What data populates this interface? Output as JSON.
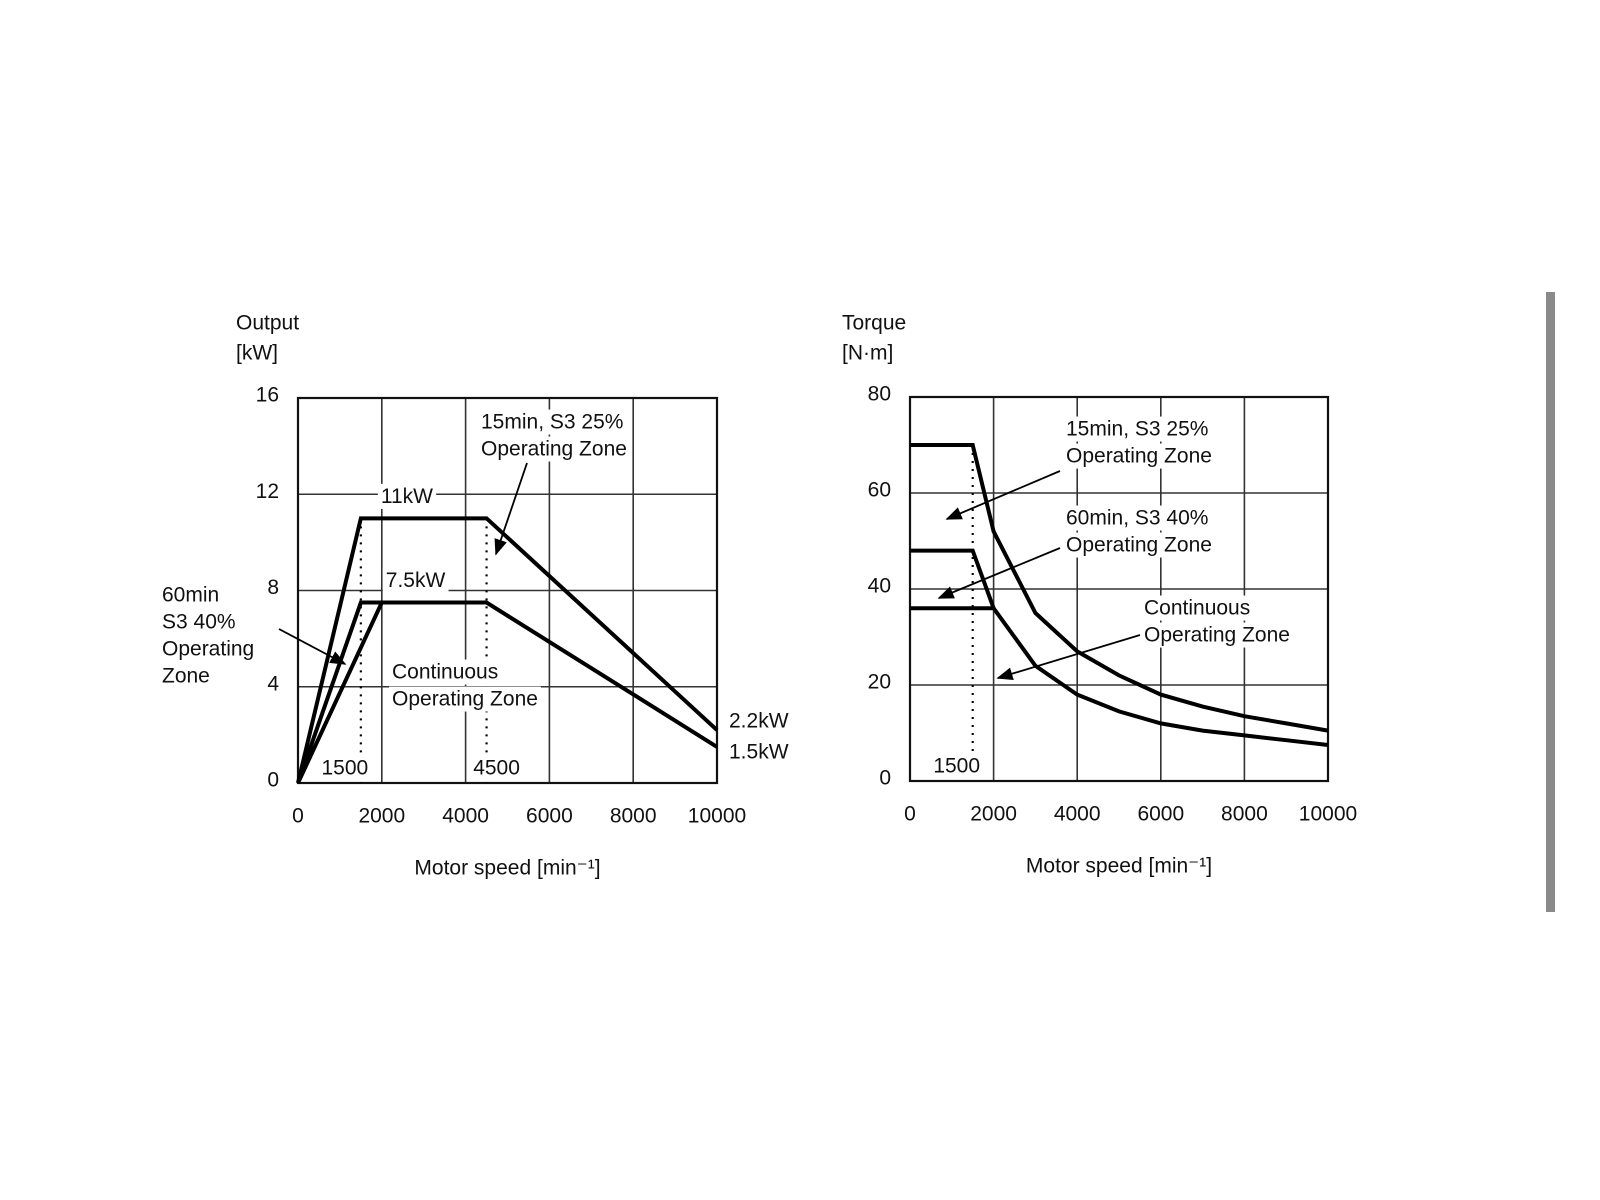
{
  "chart_data": [
    {
      "type": "line",
      "y_label": [
        "Output",
        "[kW]"
      ],
      "x_label": "Motor speed [min⁻¹]",
      "xlim": [
        0,
        10000
      ],
      "xticks": [
        0,
        2000,
        4000,
        6000,
        8000,
        10000
      ],
      "ylim": [
        0,
        16
      ],
      "yticks": [
        0,
        4,
        8,
        12,
        16
      ],
      "grid": true,
      "series": [
        {
          "color": "#000000",
          "x": [
            0,
            1500,
            4500,
            10000
          ],
          "values": [
            0,
            11,
            11,
            2.2
          ],
          "value_labels": [
            null,
            "11kW",
            null,
            "2.2kW"
          ]
        },
        {
          "color": "#000000",
          "x": [
            0,
            1500,
            2000
          ],
          "values": [
            0,
            7.5,
            7.5
          ]
        },
        {
          "color": "#000000",
          "x": [
            0,
            2000,
            4500,
            10000
          ],
          "values": [
            0,
            7.5,
            7.5,
            1.5
          ],
          "value_labels": [
            null,
            "7.5kW",
            null,
            "1.5kW"
          ]
        }
      ],
      "vlines": [
        1500,
        4500
      ],
      "annotations": [
        {
          "text": [
            "15min, S3 25%",
            "Operating Zone"
          ]
        },
        {
          "text": [
            "60min",
            "S3 40%",
            "Operating",
            "Zone"
          ]
        },
        {
          "text": [
            "Continuous",
            "Operating Zone"
          ]
        }
      ]
    },
    {
      "type": "line",
      "y_label": [
        "Torque",
        "[N·m]"
      ],
      "x_label": "Motor speed [min⁻¹]",
      "xlim": [
        0,
        10000
      ],
      "xticks": [
        0,
        2000,
        4000,
        6000,
        8000,
        10000
      ],
      "ylim": [
        0,
        80
      ],
      "yticks": [
        0,
        20,
        40,
        60,
        80
      ],
      "grid": true,
      "series": [
        {
          "color": "#000000",
          "x": [
            0,
            1500,
            2000,
            3000,
            4000,
            5000,
            6000,
            7000,
            8000,
            9000,
            10000
          ],
          "values": [
            70,
            70,
            52,
            35,
            27,
            22,
            18,
            15.5,
            13.5,
            12,
            10.5
          ]
        },
        {
          "color": "#000000",
          "x": [
            0,
            1500,
            2000
          ],
          "values": [
            48,
            48,
            36
          ]
        },
        {
          "color": "#000000",
          "x": [
            0,
            2000,
            3000,
            4000,
            5000,
            6000,
            7000,
            8000,
            9000,
            10000
          ],
          "values": [
            36,
            36,
            24,
            18,
            14.5,
            12,
            10.5,
            9.5,
            8.5,
            7.5
          ]
        }
      ],
      "vlines": [
        1500
      ],
      "annotations": [
        {
          "text": [
            "15min, S3 25%",
            "Operating Zone"
          ]
        },
        {
          "text": [
            "60min, S3 40%",
            "Operating Zone"
          ]
        },
        {
          "text": [
            "Continuous",
            "Operating Zone"
          ]
        }
      ]
    }
  ]
}
